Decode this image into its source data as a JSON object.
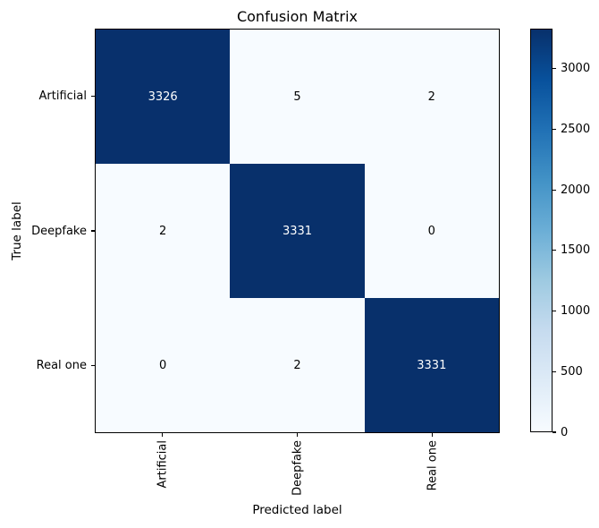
{
  "chart_data": {
    "type": "heatmap",
    "title": "Confusion Matrix",
    "xlabel": "Predicted label",
    "ylabel": "True label",
    "x_tick_labels": [
      "Artificial",
      "Deepfake",
      "Real one"
    ],
    "y_tick_labels": [
      "Artificial",
      "Deepfake",
      "Real one"
    ],
    "matrix": [
      [
        3326,
        5,
        2
      ],
      [
        2,
        3331,
        0
      ],
      [
        0,
        2,
        3331
      ]
    ],
    "vmin": 0,
    "vmax": 3331,
    "colorbar_ticks": [
      0,
      500,
      1000,
      1500,
      2000,
      2500,
      3000
    ],
    "colormap": "Blues",
    "colormap_stops": [
      "#f7fbff",
      "#deebf7",
      "#c6dbef",
      "#9ecae1",
      "#6baed6",
      "#4292c6",
      "#2171b5",
      "#08519c",
      "#08306b"
    ],
    "cell_text_colors": {
      "on_dark": "#ffffff",
      "on_light": "#000000"
    },
    "axis_color": "#000000",
    "background": "#ffffff",
    "grid": false,
    "legend_position": "right-colorbar"
  }
}
